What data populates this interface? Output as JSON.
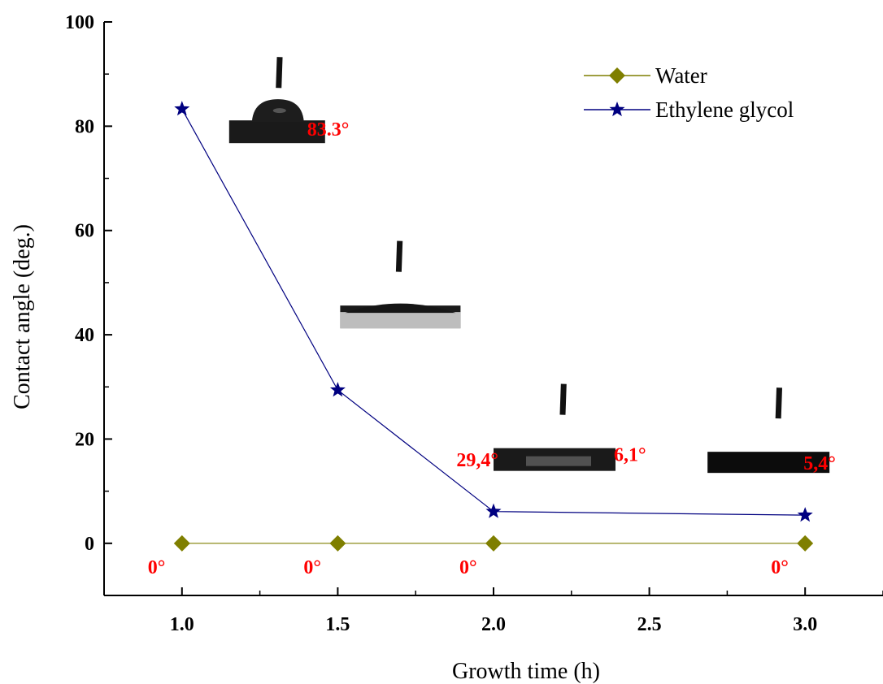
{
  "chart_data": {
    "type": "line",
    "title": "",
    "xlabel": "Growth time (h)",
    "ylabel": "Contact angle (deg.)",
    "xlim": [
      0.75,
      3.25
    ],
    "ylim": [
      -10,
      100
    ],
    "x_ticks": [
      "1.0",
      "1.5",
      "2.0",
      "2.5",
      "3.0"
    ],
    "y_ticks": [
      "0",
      "20",
      "40",
      "60",
      "80",
      "100"
    ],
    "x_tick_values": [
      1.0,
      1.5,
      2.0,
      2.5,
      3.0
    ],
    "y_tick_values": [
      0,
      20,
      40,
      60,
      80,
      100
    ],
    "legend_position": "top-right",
    "grid": false,
    "series": [
      {
        "name": "Water",
        "marker": "diamond",
        "color": "#7f7f00",
        "x": [
          1.0,
          1.5,
          2.0,
          3.0
        ],
        "y": [
          0,
          0,
          0,
          0
        ]
      },
      {
        "name": "Ethylene glycol",
        "marker": "star",
        "color": "#000080",
        "x": [
          1.0,
          1.5,
          2.0,
          3.0
        ],
        "y": [
          83.3,
          29.4,
          6.1,
          5.4
        ]
      }
    ],
    "annotations": {
      "ethylene_glycol": [
        "83.3°",
        "29,4°",
        "6,1°",
        "5,4°"
      ],
      "water": [
        "0°",
        "0°",
        "0°",
        "0°"
      ]
    },
    "annotation_color": "#ff0000",
    "inset_images": "droplet-photo"
  }
}
